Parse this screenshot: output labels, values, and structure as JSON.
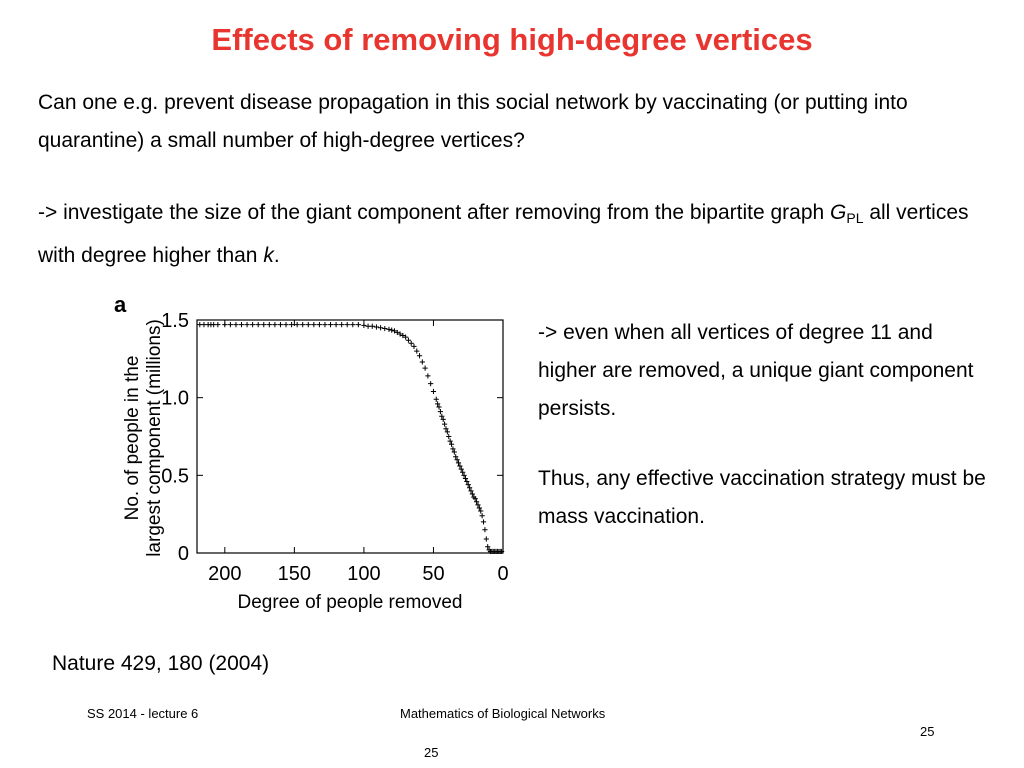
{
  "slide": {
    "title": "Effects of removing high-degree vertices",
    "question": "Can one e.g. prevent disease propagation in this social network by vaccinating (or putting into quarantine) a small number of high-degree vertices?",
    "investigate_before_g": "-> investigate the size of the giant component after removing from the bipartite graph ",
    "g_symbol": "G",
    "g_subscript": "PL",
    "investigate_mid": " all vertices with degree higher than ",
    "k_symbol": "k",
    "investigate_end": ".",
    "observation": "-> even when all vertices of degree 11 and higher are removed, a unique giant component persists.",
    "conclusion": "Thus, any effective vaccination strategy must be mass vaccination.",
    "citation": "Nature 429, 180 (2004)"
  },
  "footer": {
    "left": "SS 2014 - lecture 6",
    "center": "Mathematics of Biological Networks",
    "page_right": "25",
    "page_bottom": "25"
  },
  "chart_data": {
    "type": "scatter",
    "panel_label": "a",
    "xlabel": "Degree of people removed",
    "ylabel_line1": "No. of people in the",
    "ylabel_line2": "largest component (millions)",
    "xlim": [
      220,
      0
    ],
    "ylim": [
      0,
      1.5
    ],
    "x_reversed": true,
    "grid": false,
    "xticks": [
      200,
      150,
      100,
      50,
      0
    ],
    "xtick_labels": [
      "200",
      "150",
      "100",
      "50",
      "0"
    ],
    "yticks": [
      0,
      0.5,
      1.0,
      1.5
    ],
    "ytick_labels": [
      "0",
      "0.5",
      "1.0",
      "1.5"
    ],
    "marker": "+",
    "color": "#000000",
    "series": [
      {
        "x": [
          218,
          215,
          212,
          210,
          208,
          205,
          200,
          196,
          192,
          188,
          184,
          180,
          176,
          172,
          168,
          164,
          160,
          156,
          152,
          148,
          144,
          140,
          136,
          132,
          128,
          124,
          120,
          116,
          112,
          108,
          104,
          100,
          97,
          94,
          91,
          88,
          85,
          82,
          80,
          78,
          76,
          74,
          72,
          70,
          68,
          66,
          64,
          62,
          60,
          58,
          56,
          54,
          52,
          50,
          48,
          47,
          46,
          45,
          44,
          43,
          42,
          41,
          40,
          39,
          38,
          37,
          36,
          35,
          34,
          33,
          32,
          31,
          30,
          29,
          28,
          27,
          26,
          25,
          24,
          23,
          22,
          21,
          20,
          19,
          18,
          17,
          16,
          15,
          14,
          13,
          12,
          11,
          10,
          9,
          8,
          7,
          6,
          5,
          4,
          3,
          2,
          1
        ],
        "y": [
          1.47,
          1.47,
          1.47,
          1.47,
          1.47,
          1.47,
          1.47,
          1.47,
          1.47,
          1.47,
          1.47,
          1.47,
          1.47,
          1.47,
          1.47,
          1.47,
          1.47,
          1.47,
          1.47,
          1.47,
          1.47,
          1.47,
          1.47,
          1.47,
          1.47,
          1.47,
          1.47,
          1.47,
          1.47,
          1.47,
          1.47,
          1.465,
          1.46,
          1.46,
          1.455,
          1.45,
          1.445,
          1.44,
          1.435,
          1.43,
          1.42,
          1.41,
          1.4,
          1.39,
          1.37,
          1.35,
          1.33,
          1.3,
          1.27,
          1.23,
          1.19,
          1.14,
          1.09,
          1.04,
          0.99,
          0.96,
          0.94,
          0.91,
          0.88,
          0.86,
          0.83,
          0.8,
          0.78,
          0.75,
          0.72,
          0.7,
          0.67,
          0.65,
          0.62,
          0.6,
          0.58,
          0.56,
          0.54,
          0.52,
          0.5,
          0.48,
          0.46,
          0.44,
          0.42,
          0.4,
          0.38,
          0.36,
          0.35,
          0.33,
          0.31,
          0.29,
          0.27,
          0.24,
          0.2,
          0.15,
          0.09,
          0.04,
          0.02,
          0.01,
          0.01,
          0.01,
          0.01,
          0.01,
          0.01,
          0.01,
          0.01,
          0.01
        ]
      }
    ]
  }
}
